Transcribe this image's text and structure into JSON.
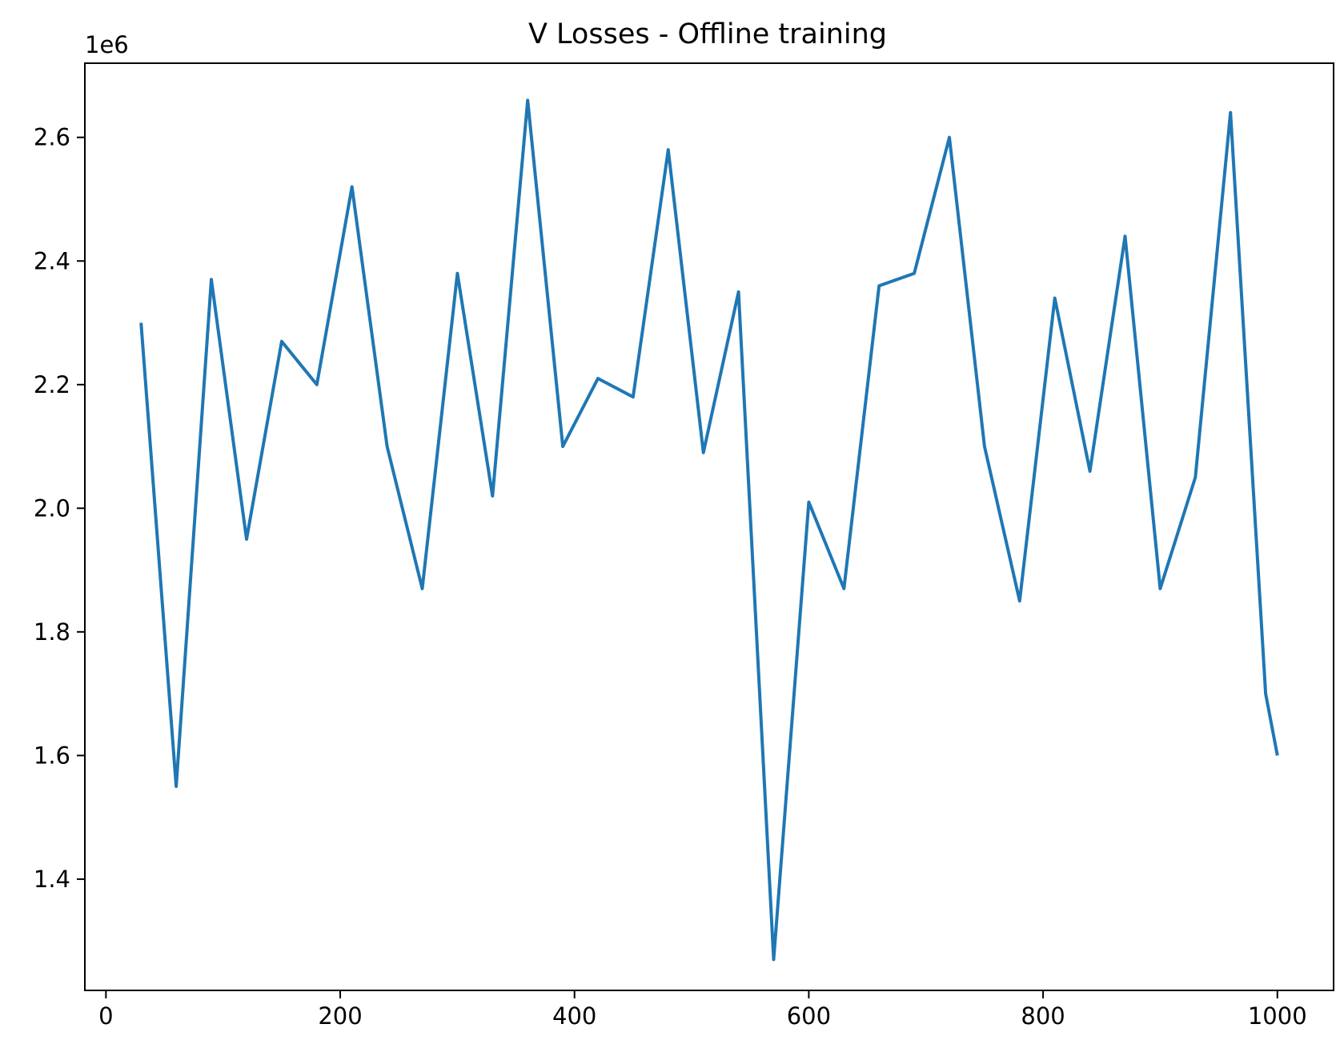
{
  "chart_data": {
    "type": "line",
    "title": "V Losses - Offline training",
    "xlabel": "",
    "ylabel": "",
    "y_offset_label": "1e6",
    "xlim": [
      -18,
      1048
    ],
    "ylim": [
      1.22,
      2.72
    ],
    "x_ticks": [
      0,
      200,
      400,
      600,
      800,
      1000
    ],
    "x_tick_labels": [
      "0",
      "200",
      "400",
      "600",
      "800",
      "1000"
    ],
    "y_ticks": [
      1.4,
      1.6,
      1.8,
      2.0,
      2.2,
      2.4,
      2.6
    ],
    "y_tick_labels": [
      "1.4",
      "1.6",
      "1.8",
      "2.0",
      "2.2",
      "2.4",
      "2.6"
    ],
    "grid": false,
    "series": [
      {
        "color": "#1f77b4",
        "x": [
          30,
          60,
          90,
          120,
          150,
          180,
          210,
          240,
          270,
          300,
          330,
          360,
          390,
          420,
          450,
          480,
          510,
          540,
          570,
          600,
          630,
          660,
          690,
          720,
          750,
          780,
          810,
          840,
          870,
          900,
          930,
          960,
          990,
          1000
        ],
        "y": [
          2.3,
          1.55,
          2.37,
          1.95,
          2.27,
          2.2,
          2.52,
          2.1,
          1.87,
          2.38,
          2.02,
          2.66,
          2.1,
          2.21,
          2.18,
          2.58,
          2.09,
          2.35,
          1.27,
          2.01,
          1.87,
          2.36,
          2.38,
          2.6,
          2.1,
          1.85,
          2.34,
          2.06,
          2.44,
          1.87,
          2.05,
          2.64,
          1.7,
          1.6
        ]
      }
    ]
  }
}
